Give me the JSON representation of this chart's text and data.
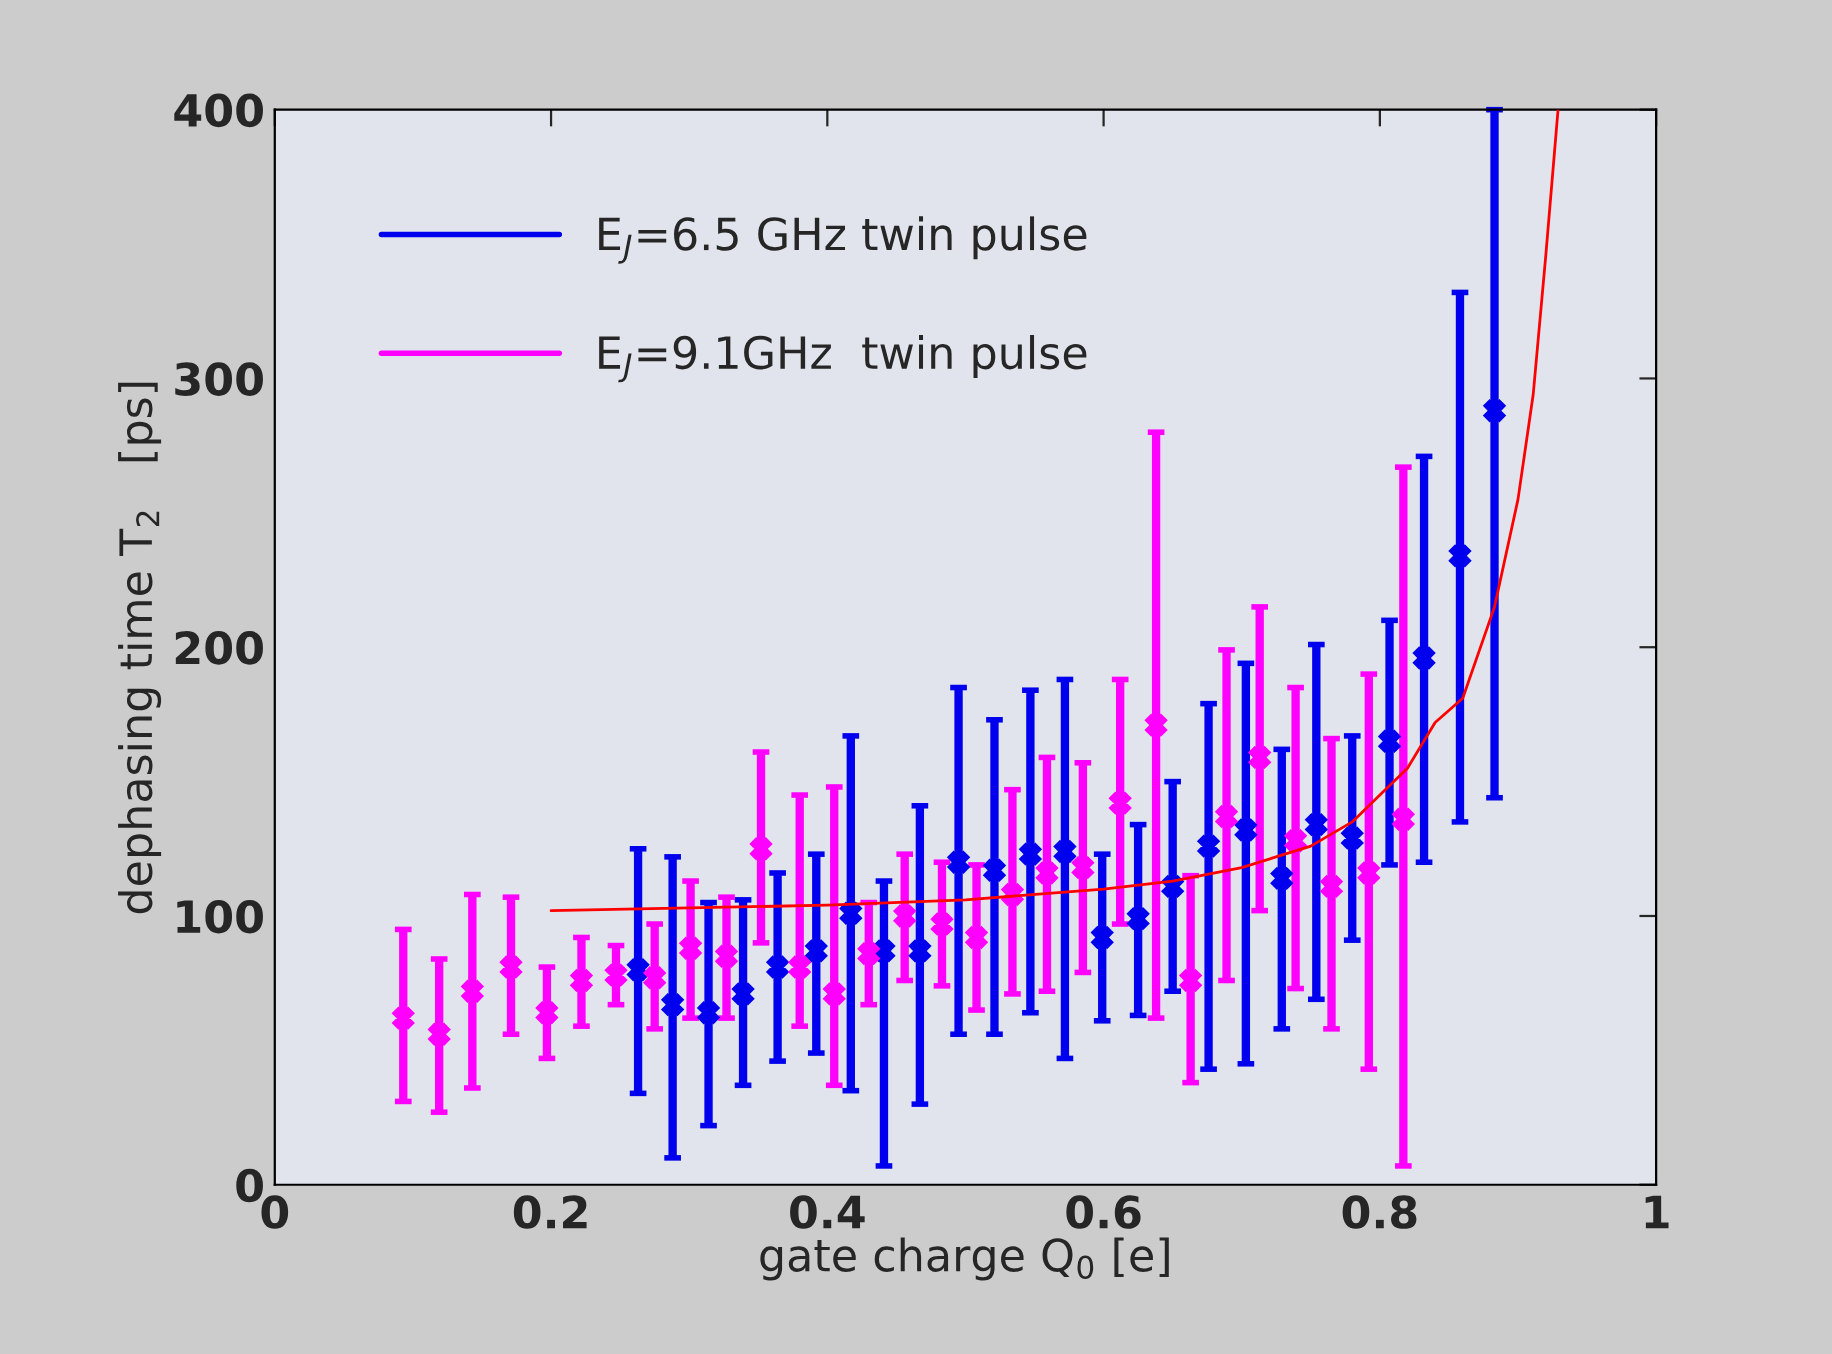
{
  "chart_data": {
    "type": "scatter",
    "xlabel": "gate charge Q$_{0}$ [e]",
    "ylabel": "dephasing time T$_{2}$   [ps]",
    "xlim": [
      0,
      1
    ],
    "ylim": [
      0,
      400
    ],
    "xticks": [
      0,
      {
        "value": 0.2,
        "label": "0.2"
      },
      {
        "value": 0.4,
        "label": "0.4"
      },
      {
        "value": 0.6,
        "label": "0.6"
      },
      {
        "value": 0.8,
        "label": "0.8"
      },
      1
    ],
    "yticks": [
      0,
      100,
      200,
      300,
      400
    ],
    "grid": false,
    "legend": "top left",
    "series": [
      {
        "name": "E$_{J}$=6.5 GHz twin pulse",
        "color": "#0000ee",
        "marker": "cross",
        "x": [
          0.263,
          0.288,
          0.314,
          0.339,
          0.364,
          0.392,
          0.417,
          0.441,
          0.467,
          0.495,
          0.521,
          0.547,
          0.572,
          0.599,
          0.625,
          0.65,
          0.676,
          0.703,
          0.729,
          0.754,
          0.78,
          0.807,
          0.832,
          0.858,
          0.883
        ],
        "values": [
          80,
          67,
          64,
          71,
          81,
          87,
          101,
          87,
          87,
          120,
          117,
          123,
          124,
          92,
          99,
          111,
          126,
          132,
          114,
          134,
          129,
          165,
          196,
          234,
          288
        ],
        "errors": [
          [
            34,
            125
          ],
          [
            10,
            122
          ],
          [
            22,
            105
          ],
          [
            37,
            106
          ],
          [
            46,
            116
          ],
          [
            49,
            123
          ],
          [
            35,
            167
          ],
          [
            7,
            113
          ],
          [
            30,
            141
          ],
          [
            56,
            185
          ],
          [
            56,
            173
          ],
          [
            64,
            184
          ],
          [
            47,
            188
          ],
          [
            61,
            123
          ],
          [
            63,
            134
          ],
          [
            72,
            150
          ],
          [
            43,
            179
          ],
          [
            45,
            194
          ],
          [
            58,
            162
          ],
          [
            69,
            201
          ],
          [
            91,
            167
          ],
          [
            119,
            210
          ],
          [
            120,
            271
          ],
          [
            135,
            332
          ],
          [
            144,
            400
          ]
        ]
      },
      {
        "name": "E$_{J}$=9.1GHz  twin pulse",
        "color": "#ff00ff",
        "marker": "cross",
        "x": [
          0.093,
          0.119,
          0.143,
          0.171,
          0.197,
          0.222,
          0.247,
          0.275,
          0.301,
          0.327,
          0.352,
          0.38,
          0.405,
          0.43,
          0.456,
          0.483,
          0.508,
          0.534,
          0.559,
          0.585,
          0.612,
          0.638,
          0.663,
          0.689,
          0.713,
          0.739,
          0.765,
          0.792,
          0.817
        ],
        "values": [
          62,
          56,
          72,
          81,
          64,
          76,
          78,
          77,
          88,
          85,
          125,
          81,
          71,
          86,
          100,
          97,
          92,
          108,
          116,
          118,
          142,
          171,
          76,
          137,
          159,
          128,
          111,
          116,
          136
        ],
        "errors": [
          [
            31,
            95
          ],
          [
            27,
            84
          ],
          [
            36,
            108
          ],
          [
            56,
            107
          ],
          [
            47,
            81
          ],
          [
            59,
            92
          ],
          [
            67,
            89
          ],
          [
            58,
            97
          ],
          [
            62,
            113
          ],
          [
            62,
            107
          ],
          [
            90,
            161
          ],
          [
            59,
            145
          ],
          [
            37,
            148
          ],
          [
            67,
            105
          ],
          [
            76,
            123
          ],
          [
            74,
            120
          ],
          [
            65,
            119
          ],
          [
            71,
            147
          ],
          [
            72,
            159
          ],
          [
            79,
            157
          ],
          [
            97,
            188
          ],
          [
            62,
            280
          ],
          [
            38,
            115
          ],
          [
            76,
            199
          ],
          [
            102,
            215
          ],
          [
            73,
            185
          ],
          [
            58,
            166
          ],
          [
            43,
            190
          ],
          [
            7,
            267
          ]
        ]
      },
      {
        "type": "line",
        "color": "#ff0000",
        "marker": "none",
        "x": [
          0.2,
          0.3,
          0.4,
          0.5,
          0.6,
          0.65,
          0.7,
          0.75,
          0.78,
          0.8,
          0.82,
          0.84,
          0.86,
          0.883,
          0.9,
          0.911,
          0.92,
          0.929
        ],
        "values": [
          102,
          103,
          104,
          106,
          110,
          113,
          118,
          126,
          135,
          145,
          155,
          172,
          181,
          215,
          255,
          294,
          345,
          400
        ]
      }
    ]
  }
}
